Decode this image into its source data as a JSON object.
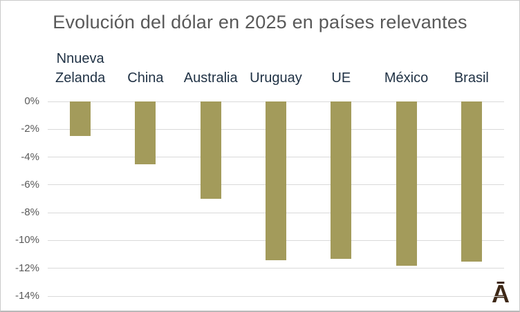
{
  "title": "Evolución del dólar en 2025 en países relevantes",
  "logo": {
    "glyph": "Ā",
    "color": "#3E2817"
  },
  "colors": {
    "bar": "#A39B5B",
    "gridline": "#D9D9D9",
    "title_text": "#595959",
    "axis_text": "#595959",
    "category_text": "#1F3144",
    "background": "#FFFFFF"
  },
  "chart_data": {
    "type": "bar",
    "title": "Evolución del dólar en 2025 en países relevantes",
    "categories": [
      "Nnueva Zelanda",
      "China",
      "Australia",
      "Uruguay",
      "UE",
      "México",
      "Brasil"
    ],
    "values": [
      -2.5,
      -4.5,
      -7.0,
      -11.4,
      -11.3,
      -11.8,
      -11.5
    ],
    "unit": "%",
    "xlabel": "",
    "ylabel": "",
    "ylim": [
      -14,
      0
    ],
    "ytick_step": 2,
    "ytick_labels": [
      "0%",
      "-2%",
      "-4%",
      "-6%",
      "-8%",
      "-10%",
      "-12%",
      "-14%"
    ],
    "grid": true,
    "legend": false,
    "bar_color": "#A39B5B",
    "category_labels_position": "top"
  }
}
